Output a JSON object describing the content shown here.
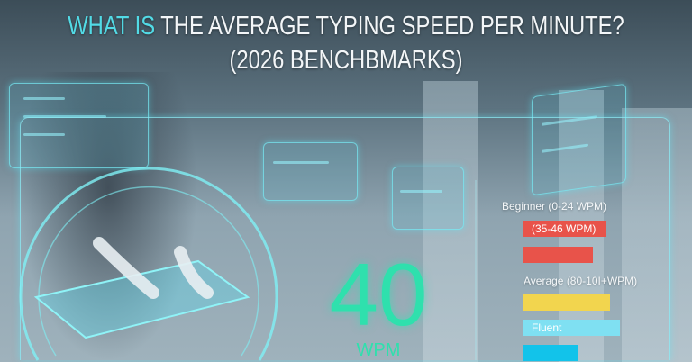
{
  "title": {
    "accent": "WHAT IS",
    "rest": " THE AVERAGE TYPING SPEED PER MINUTE?",
    "line2": "(2026 BENCHBMARKS)"
  },
  "stat": {
    "value": "40",
    "unit": "WPM",
    "color": "#2fe0ad"
  },
  "levels": [
    {
      "label": "Beginner (0-24 WPM)"
    },
    {
      "bar_label": "(35-46 WPM)",
      "color": "#e8534a"
    },
    {
      "bar_label": "",
      "color": "#e8534a"
    },
    {
      "label": "Average (80-10I+WPM)"
    },
    {
      "bar_label": "",
      "color": "#f2d54e"
    },
    {
      "bar_label": "Fluent",
      "color": "#7fe0f2"
    },
    {
      "bar_label": "",
      "color": "#12c3ea"
    }
  ]
}
